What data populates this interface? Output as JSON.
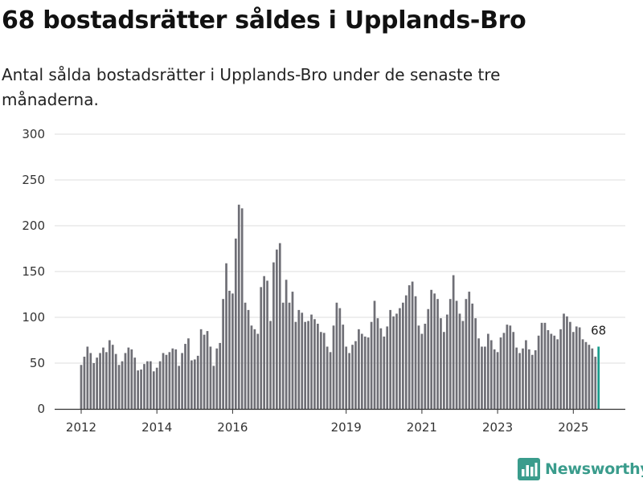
{
  "title": "68 bostadsrätter såldes i Upplands-Bro",
  "subtitle": "Antal sålda bostadsrätter i Upplands-Bro under de senaste tre månaderna.",
  "brand": {
    "name": "Newsworthy",
    "color": "#3a9c8c"
  },
  "colors": {
    "bar": "#6f6f76",
    "highlight": "#1a9c8c",
    "grid": "#dddddd"
  },
  "chart_data": {
    "type": "bar",
    "title": "68 bostadsrätter såldes i Upplands-Bro",
    "xlabel": "",
    "ylabel": "",
    "ylim": [
      0,
      300
    ],
    "yticks": [
      0,
      50,
      100,
      150,
      200,
      250,
      300
    ],
    "xticks": [
      {
        "label": "2012",
        "index": 0
      },
      {
        "label": "2014",
        "index": 24
      },
      {
        "label": "2016",
        "index": 48
      },
      {
        "label": "2019",
        "index": 84
      },
      {
        "label": "2021",
        "index": 108
      },
      {
        "label": "2023",
        "index": 132
      },
      {
        "label": "2025",
        "index": 156
      }
    ],
    "values": [
      48,
      57,
      68,
      61,
      50,
      56,
      61,
      67,
      62,
      75,
      70,
      60,
      48,
      52,
      61,
      67,
      65,
      56,
      42,
      43,
      49,
      52,
      52,
      41,
      45,
      52,
      61,
      59,
      62,
      66,
      65,
      47,
      61,
      71,
      77,
      53,
      54,
      58,
      87,
      81,
      85,
      68,
      47,
      66,
      72,
      120,
      159,
      129,
      126,
      186,
      223,
      219,
      116,
      108,
      91,
      87,
      82,
      133,
      145,
      140,
      96,
      160,
      174,
      181,
      116,
      141,
      116,
      128,
      95,
      108,
      105,
      95,
      96,
      103,
      98,
      93,
      84,
      83,
      68,
      62,
      91,
      116,
      110,
      92,
      68,
      61,
      70,
      74,
      87,
      82,
      79,
      78,
      95,
      118,
      99,
      88,
      79,
      90,
      108,
      101,
      104,
      110,
      116,
      124,
      135,
      139,
      123,
      91,
      82,
      93,
      109,
      130,
      126,
      120,
      99,
      84,
      103,
      120,
      146,
      118,
      104,
      96,
      120,
      128,
      115,
      99,
      77,
      68,
      68,
      82,
      75,
      65,
      62,
      78,
      83,
      92,
      91,
      84,
      67,
      61,
      66,
      75,
      65,
      59,
      64,
      80,
      94,
      94,
      86,
      82,
      80,
      76,
      87,
      104,
      101,
      95,
      84,
      90,
      89,
      76,
      73,
      70,
      66,
      57,
      68
    ],
    "highlight_index": 164,
    "end_label": "68"
  }
}
